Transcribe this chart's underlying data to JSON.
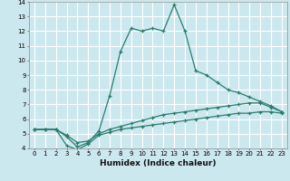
{
  "xlabel": "Humidex (Indice chaleur)",
  "background_color": "#cce8ef",
  "grid_color": "#ffffff",
  "line_color": "#2a7d6e",
  "xlim": [
    -0.5,
    23.5
  ],
  "ylim": [
    4,
    14
  ],
  "xticks": [
    0,
    1,
    2,
    3,
    4,
    5,
    6,
    7,
    8,
    9,
    10,
    11,
    12,
    13,
    14,
    15,
    16,
    17,
    18,
    19,
    20,
    21,
    22,
    23
  ],
  "yticks": [
    4,
    5,
    6,
    7,
    8,
    9,
    10,
    11,
    12,
    13,
    14
  ],
  "series": [
    {
      "x": [
        0,
        1,
        2,
        3,
        4,
        5,
        6,
        7,
        8,
        9,
        10,
        11,
        12,
        13,
        14,
        15,
        16,
        17,
        18,
        19,
        20,
        21,
        22,
        23
      ],
      "y": [
        5.3,
        5.3,
        5.3,
        4.8,
        4.1,
        4.4,
        5.2,
        7.6,
        10.6,
        12.2,
        12.0,
        12.2,
        12.0,
        13.8,
        12.0,
        9.3,
        9.0,
        8.5,
        8.0,
        7.8,
        7.5,
        7.2,
        6.9,
        6.5
      ]
    },
    {
      "x": [
        0,
        1,
        2,
        3,
        4,
        5,
        6,
        7,
        8,
        9,
        10,
        11,
        12,
        13,
        14,
        15,
        16,
        17,
        18,
        19,
        20,
        21,
        22,
        23
      ],
      "y": [
        5.3,
        5.3,
        5.3,
        4.9,
        4.4,
        4.5,
        5.0,
        5.3,
        5.5,
        5.7,
        5.9,
        6.1,
        6.3,
        6.4,
        6.5,
        6.6,
        6.7,
        6.8,
        6.9,
        7.0,
        7.1,
        7.1,
        6.8,
        6.5
      ]
    },
    {
      "x": [
        0,
        1,
        2,
        3,
        4,
        5,
        6,
        7,
        8,
        9,
        10,
        11,
        12,
        13,
        14,
        15,
        16,
        17,
        18,
        19,
        20,
        21,
        22,
        23
      ],
      "y": [
        5.3,
        5.3,
        5.3,
        4.2,
        3.9,
        4.3,
        4.9,
        5.1,
        5.3,
        5.4,
        5.5,
        5.6,
        5.7,
        5.8,
        5.9,
        6.0,
        6.1,
        6.2,
        6.3,
        6.4,
        6.4,
        6.5,
        6.5,
        6.4
      ]
    }
  ],
  "tick_fontsize": 5,
  "label_fontsize": 6.5
}
